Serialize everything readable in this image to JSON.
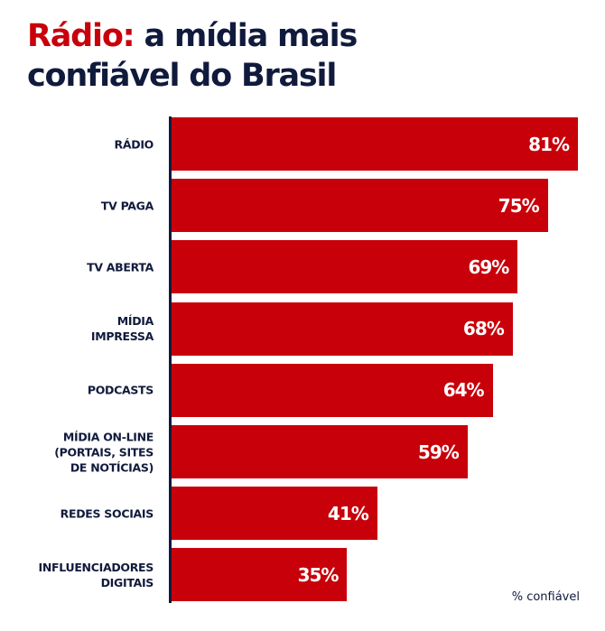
{
  "chart_data": {
    "type": "bar",
    "orientation": "horizontal",
    "title_accent": "Rádio:",
    "title_rest_line1": " a mídia mais",
    "title_line2": "confiável do Brasil",
    "categories": [
      "RÁDIO",
      "TV PAGA",
      "TV ABERTA",
      "MÍDIA\nIMPRESSA",
      "PODCASTS",
      "MÍDIA ON-LINE\n(PORTAIS, SITES\nDE NOTÍCIAS)",
      "REDES SOCIAIS",
      "INFLUENCIADORES\nDIGITAIS"
    ],
    "values": [
      81,
      75,
      69,
      68,
      64,
      59,
      41,
      35
    ],
    "value_labels": [
      "81%",
      "75%",
      "69%",
      "68%",
      "64%",
      "59%",
      "41%",
      "35%"
    ],
    "unit_note": "% confiável",
    "xlim": [
      0,
      81
    ],
    "grid": false,
    "colors": {
      "bar": "#c8000a",
      "text": "#101a3c",
      "accent": "#c8000a"
    }
  }
}
